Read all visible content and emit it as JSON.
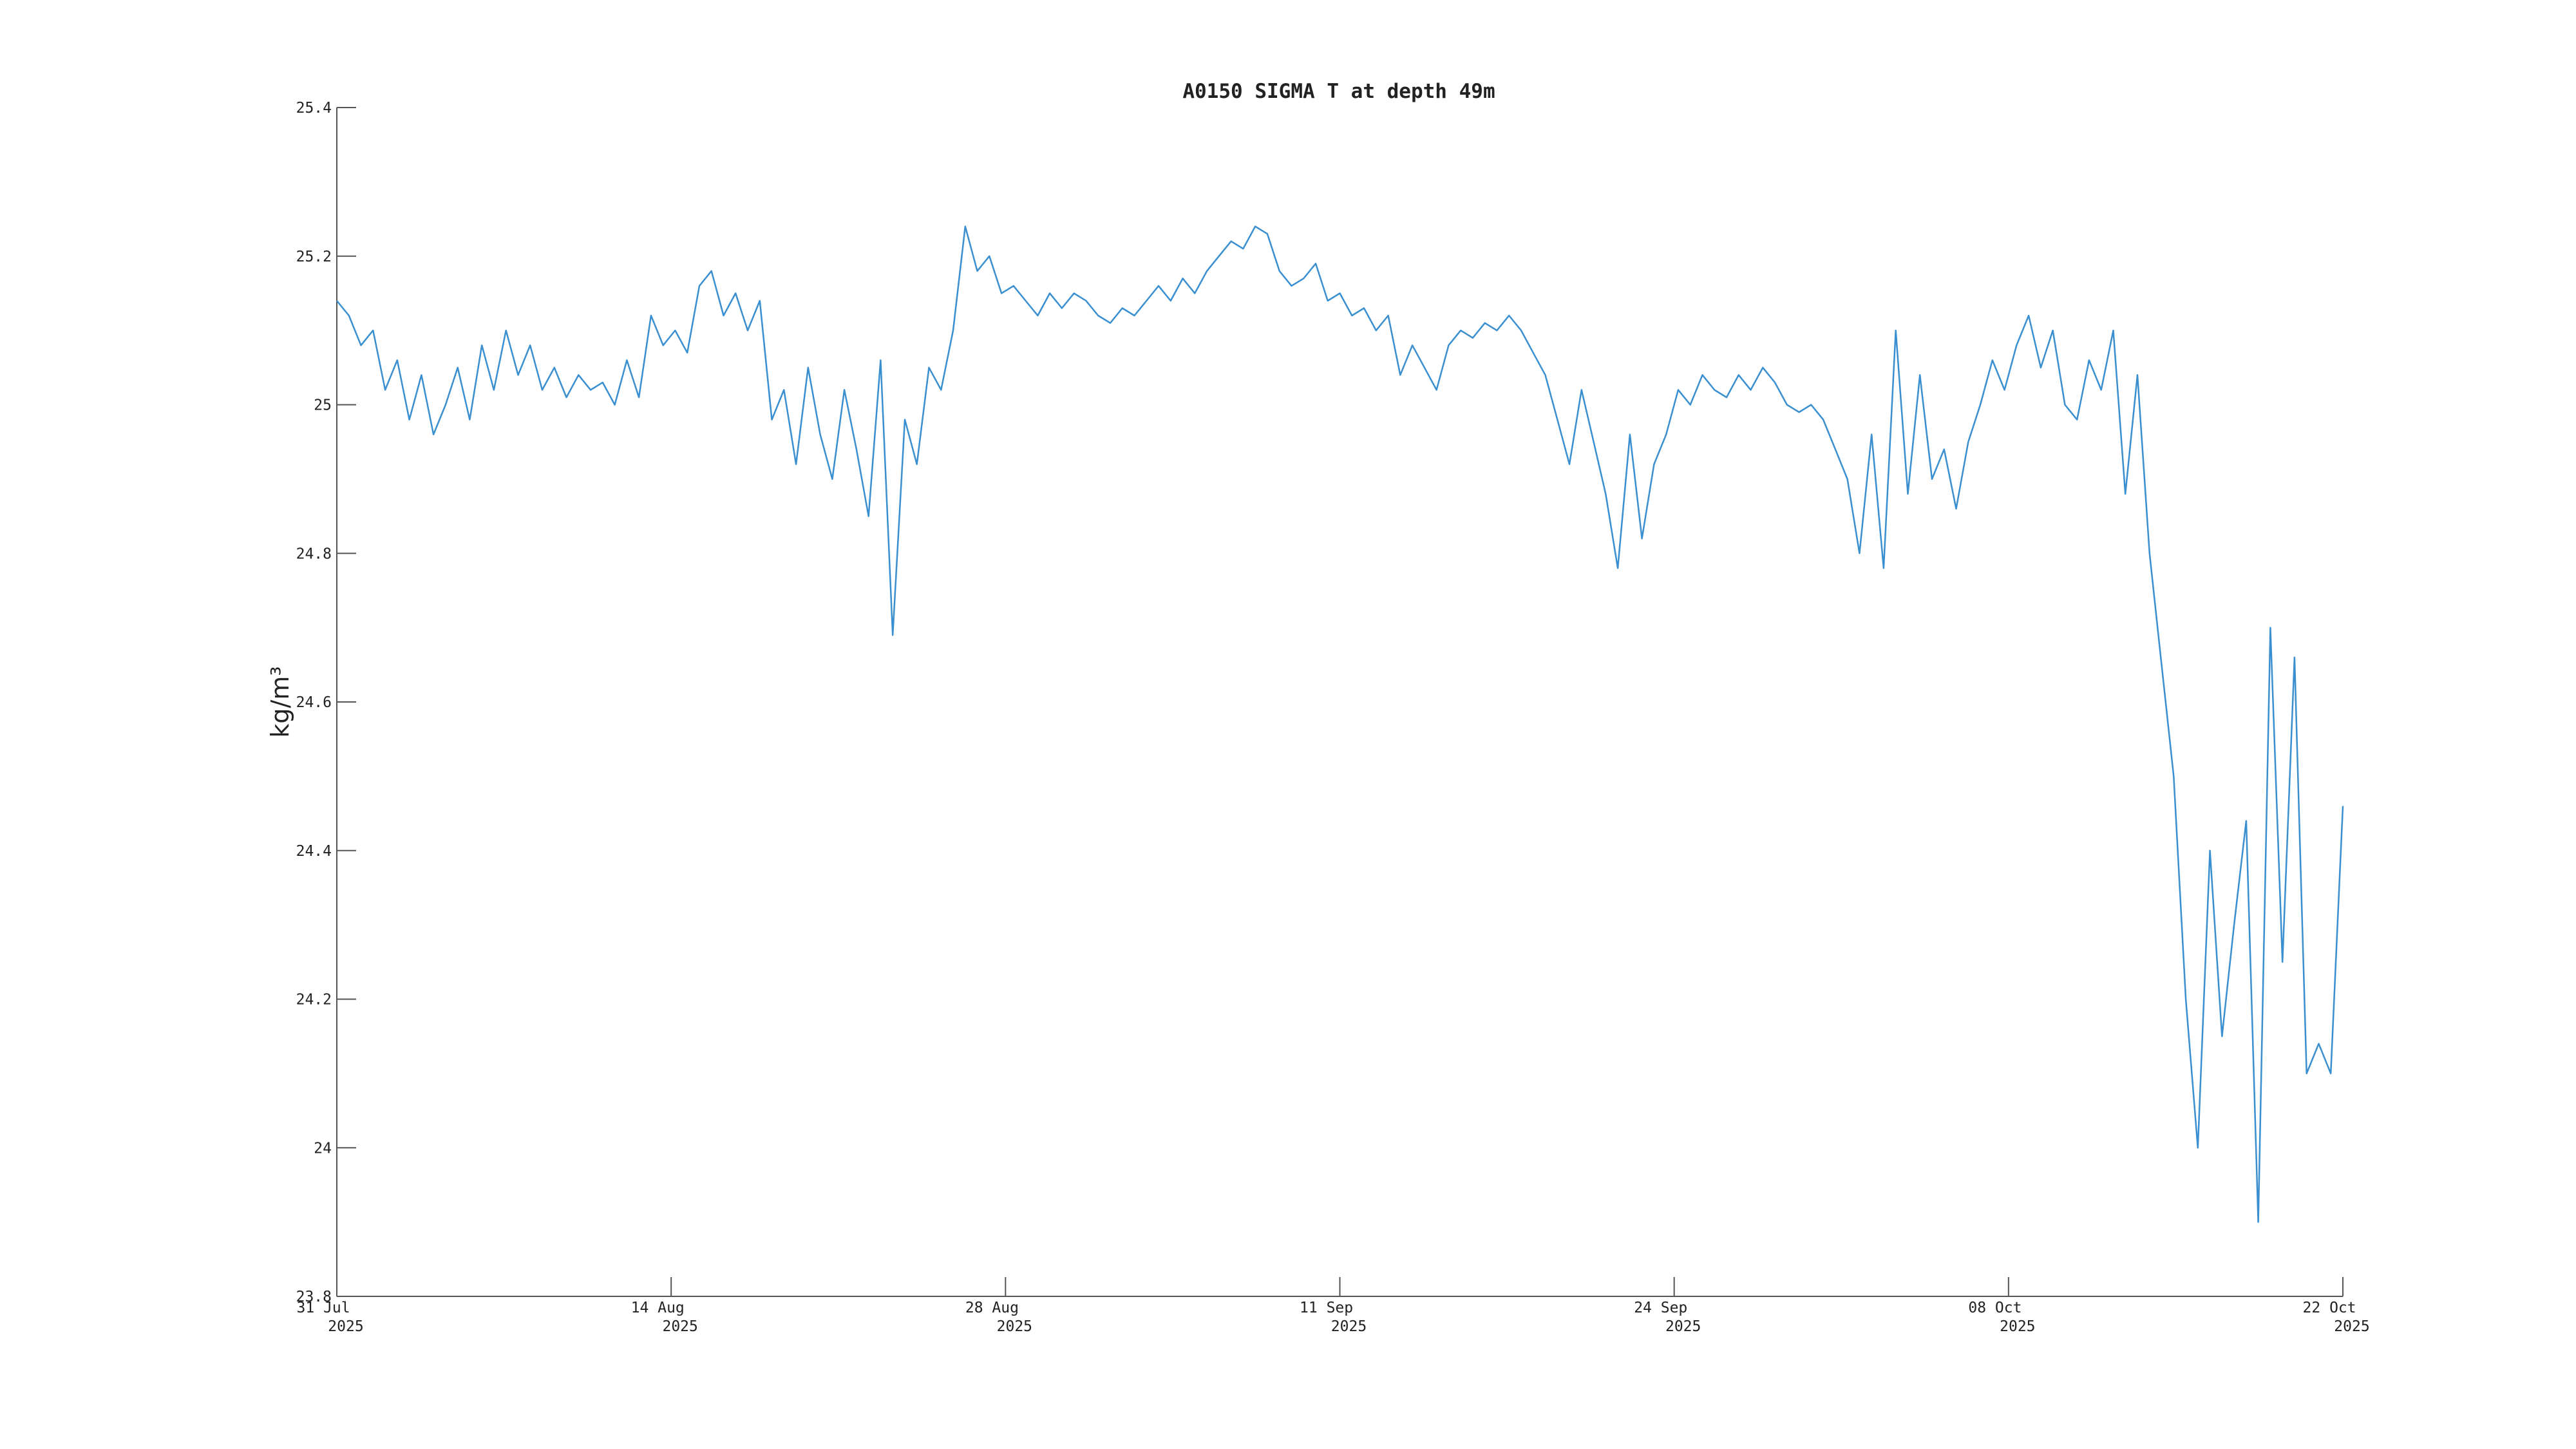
{
  "chart_data": {
    "type": "line",
    "title": "A0150 SIGMA T at depth 49m",
    "y_label": "kg/m³",
    "xlim": [
      "2025-07-31T00:00",
      "2025-10-22T00:00"
    ],
    "xticks": [
      {
        "value": "2025-07-31T00:00",
        "label": "31 Jul 2025"
      },
      {
        "value": "2025-08-13T20:00",
        "label": "14 Aug 2025"
      },
      {
        "value": "2025-08-27T16:00",
        "label": "28 Aug 2025"
      },
      {
        "value": "2025-09-10T12:00",
        "label": "11 Sep 2025"
      },
      {
        "value": "2025-09-24T08:00",
        "label": "24 Sep 2025"
      },
      {
        "value": "2025-10-08T04:00",
        "label": "08 Oct 2025"
      },
      {
        "value": "2025-10-22T00:00",
        "label": "22 Oct 2025"
      }
    ],
    "ylim": [
      23.8,
      25.4
    ],
    "yticks": [
      23.8,
      24,
      24.2,
      24.4,
      24.6,
      24.8,
      25,
      25.2,
      25.4
    ],
    "grid": false,
    "x": [
      "2025-07-31T00:00",
      "2025-07-31T12:00",
      "2025-08-01T00:00",
      "2025-08-01T12:00",
      "2025-08-02T00:00",
      "2025-08-02T12:00",
      "2025-08-03T00:00",
      "2025-08-03T12:00",
      "2025-08-04T00:00",
      "2025-08-04T12:00",
      "2025-08-05T00:00",
      "2025-08-05T12:00",
      "2025-08-06T00:00",
      "2025-08-06T12:00",
      "2025-08-07T00:00",
      "2025-08-07T12:00",
      "2025-08-08T00:00",
      "2025-08-08T12:00",
      "2025-08-09T00:00",
      "2025-08-09T12:00",
      "2025-08-10T00:00",
      "2025-08-10T12:00",
      "2025-08-11T00:00",
      "2025-08-11T12:00",
      "2025-08-12T00:00",
      "2025-08-12T12:00",
      "2025-08-13T00:00",
      "2025-08-13T12:00",
      "2025-08-14T00:00",
      "2025-08-14T12:00",
      "2025-08-15T00:00",
      "2025-08-15T12:00",
      "2025-08-16T00:00",
      "2025-08-16T12:00",
      "2025-08-17T00:00",
      "2025-08-17T12:00",
      "2025-08-18T00:00",
      "2025-08-18T12:00",
      "2025-08-19T00:00",
      "2025-08-19T12:00",
      "2025-08-20T00:00",
      "2025-08-20T12:00",
      "2025-08-21T00:00",
      "2025-08-21T12:00",
      "2025-08-22T00:00",
      "2025-08-22T12:00",
      "2025-08-23T00:00",
      "2025-08-23T12:00",
      "2025-08-24T00:00",
      "2025-08-24T12:00",
      "2025-08-25T00:00",
      "2025-08-25T12:00",
      "2025-08-26T00:00",
      "2025-08-26T12:00",
      "2025-08-27T00:00",
      "2025-08-27T12:00",
      "2025-08-28T00:00",
      "2025-08-28T12:00",
      "2025-08-29T00:00",
      "2025-08-29T12:00",
      "2025-08-30T00:00",
      "2025-08-30T12:00",
      "2025-08-31T00:00",
      "2025-08-31T12:00",
      "2025-09-01T00:00",
      "2025-09-01T12:00",
      "2025-09-02T00:00",
      "2025-09-02T12:00",
      "2025-09-03T00:00",
      "2025-09-03T12:00",
      "2025-09-04T00:00",
      "2025-09-04T12:00",
      "2025-09-05T00:00",
      "2025-09-05T12:00",
      "2025-09-06T00:00",
      "2025-09-06T12:00",
      "2025-09-07T00:00",
      "2025-09-07T12:00",
      "2025-09-08T00:00",
      "2025-09-08T12:00",
      "2025-09-09T00:00",
      "2025-09-09T12:00",
      "2025-09-10T00:00",
      "2025-09-10T12:00",
      "2025-09-11T00:00",
      "2025-09-11T12:00",
      "2025-09-12T00:00",
      "2025-09-12T12:00",
      "2025-09-13T00:00",
      "2025-09-13T12:00",
      "2025-09-14T00:00",
      "2025-09-14T12:00",
      "2025-09-15T00:00",
      "2025-09-15T12:00",
      "2025-09-16T00:00",
      "2025-09-16T12:00",
      "2025-09-17T00:00",
      "2025-09-17T12:00",
      "2025-09-18T00:00",
      "2025-09-18T12:00",
      "2025-09-19T00:00",
      "2025-09-19T12:00",
      "2025-09-20T00:00",
      "2025-09-20T12:00",
      "2025-09-21T00:00",
      "2025-09-21T12:00",
      "2025-09-22T00:00",
      "2025-09-22T12:00",
      "2025-09-23T00:00",
      "2025-09-23T12:00",
      "2025-09-24T00:00",
      "2025-09-24T12:00",
      "2025-09-25T00:00",
      "2025-09-25T12:00",
      "2025-09-26T00:00",
      "2025-09-26T12:00",
      "2025-09-27T00:00",
      "2025-09-27T12:00",
      "2025-09-28T00:00",
      "2025-09-28T12:00",
      "2025-09-29T00:00",
      "2025-09-29T12:00",
      "2025-09-30T00:00",
      "2025-09-30T12:00",
      "2025-10-01T00:00",
      "2025-10-01T12:00",
      "2025-10-02T00:00",
      "2025-10-02T12:00",
      "2025-10-03T00:00",
      "2025-10-03T12:00",
      "2025-10-04T00:00",
      "2025-10-04T12:00",
      "2025-10-05T00:00",
      "2025-10-05T12:00",
      "2025-10-06T00:00",
      "2025-10-06T12:00",
      "2025-10-07T00:00",
      "2025-10-07T12:00",
      "2025-10-08T00:00",
      "2025-10-08T12:00",
      "2025-10-09T00:00",
      "2025-10-09T12:00",
      "2025-10-10T00:00",
      "2025-10-10T12:00",
      "2025-10-11T00:00",
      "2025-10-11T12:00",
      "2025-10-12T00:00",
      "2025-10-12T12:00",
      "2025-10-13T00:00",
      "2025-10-13T12:00",
      "2025-10-14T00:00",
      "2025-10-14T12:00",
      "2025-10-15T00:00",
      "2025-10-15T12:00",
      "2025-10-16T00:00",
      "2025-10-16T12:00",
      "2025-10-17T00:00",
      "2025-10-17T12:00",
      "2025-10-18T00:00",
      "2025-10-18T12:00",
      "2025-10-19T00:00",
      "2025-10-19T12:00",
      "2025-10-20T00:00",
      "2025-10-20T12:00",
      "2025-10-21T00:00",
      "2025-10-21T12:00",
      "2025-10-22T00:00"
    ],
    "series": [
      {
        "color": "#3a8fd0",
        "values": [
          25.14,
          25.12,
          25.08,
          25.1,
          25.02,
          25.06,
          24.98,
          25.04,
          24.96,
          25.0,
          25.05,
          24.98,
          25.08,
          25.02,
          25.1,
          25.04,
          25.08,
          25.02,
          25.05,
          25.01,
          25.04,
          25.02,
          25.03,
          25.0,
          25.06,
          25.01,
          25.12,
          25.08,
          25.1,
          25.07,
          25.16,
          25.18,
          25.12,
          25.15,
          25.1,
          25.14,
          24.98,
          25.02,
          24.92,
          25.05,
          24.96,
          24.9,
          25.02,
          24.94,
          24.85,
          25.06,
          24.69,
          24.98,
          24.92,
          25.05,
          25.02,
          25.1,
          25.24,
          25.18,
          25.2,
          25.15,
          25.16,
          25.14,
          25.12,
          25.15,
          25.13,
          25.15,
          25.14,
          25.12,
          25.11,
          25.13,
          25.12,
          25.14,
          25.16,
          25.14,
          25.17,
          25.15,
          25.18,
          25.2,
          25.22,
          25.21,
          25.24,
          25.23,
          25.18,
          25.16,
          25.17,
          25.19,
          25.14,
          25.15,
          25.12,
          25.13,
          25.1,
          25.12,
          25.04,
          25.08,
          25.05,
          25.02,
          25.08,
          25.1,
          25.09,
          25.11,
          25.1,
          25.12,
          25.1,
          25.07,
          25.04,
          24.98,
          24.92,
          25.02,
          24.95,
          24.88,
          24.78,
          24.96,
          24.82,
          24.92,
          24.96,
          25.02,
          25.0,
          25.04,
          25.02,
          25.01,
          25.04,
          25.02,
          25.05,
          25.03,
          25.0,
          24.99,
          25.0,
          24.98,
          24.94,
          24.9,
          24.8,
          24.96,
          24.78,
          25.1,
          24.88,
          25.04,
          24.9,
          24.94,
          24.86,
          24.95,
          25.0,
          25.06,
          25.02,
          25.08,
          25.12,
          25.05,
          25.1,
          25.0,
          24.98,
          25.06,
          25.02,
          25.1,
          24.88,
          25.04,
          24.8,
          24.65,
          24.5,
          24.2,
          24.0,
          24.4,
          24.15,
          24.3,
          24.44,
          23.9,
          24.7,
          24.25,
          24.66,
          24.1,
          24.14,
          24.1,
          24.46
        ]
      }
    ]
  }
}
